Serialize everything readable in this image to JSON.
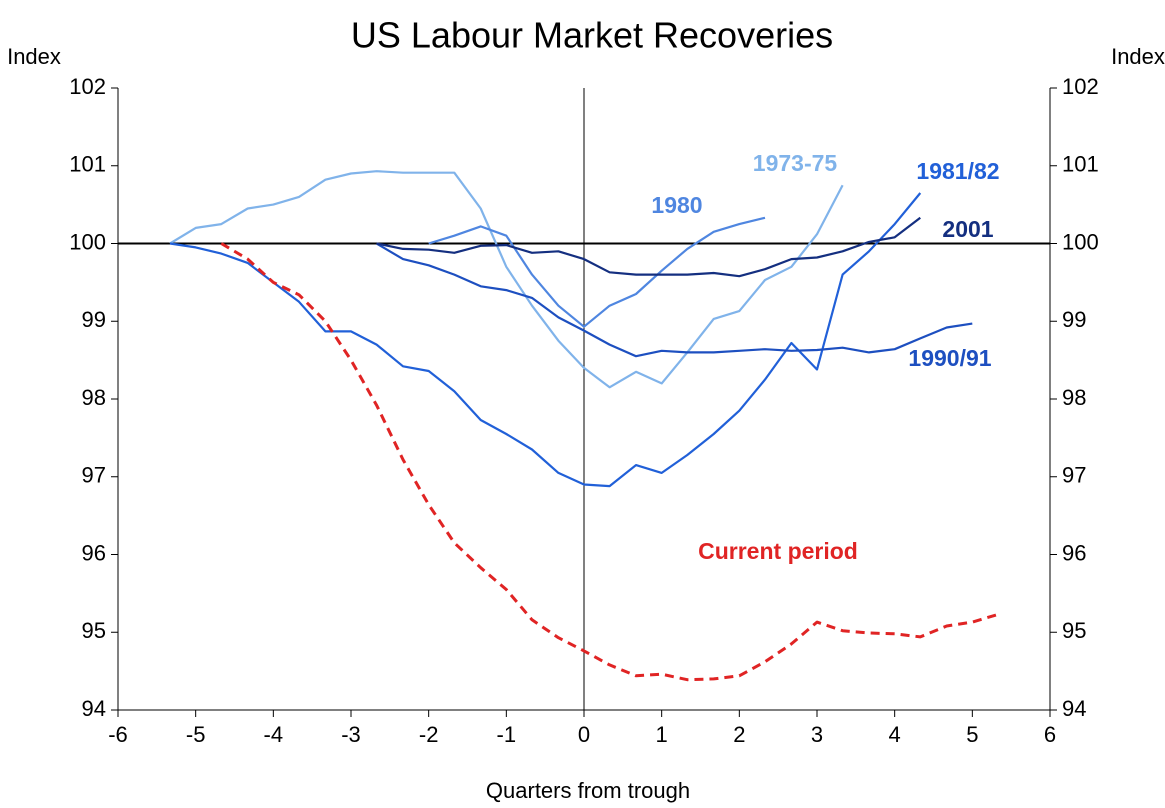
{
  "chart_data": {
    "type": "line",
    "title": "US Labour Market Recoveries",
    "y_label": "Index",
    "y2_label": "Index",
    "x_label": "Quarters from trough",
    "xlim": [
      -6,
      6
    ],
    "xticks": [
      -6,
      -5,
      -4,
      -3,
      -2,
      -1,
      0,
      1,
      2,
      3,
      4,
      5,
      6
    ],
    "ylim": [
      94,
      102
    ],
    "yticks": [
      94,
      95,
      96,
      97,
      98,
      99,
      100,
      101,
      102
    ],
    "y2lim": [
      94,
      102
    ],
    "y2ticks": [
      94,
      95,
      96,
      97,
      98,
      99,
      100,
      101,
      102
    ],
    "grid": false,
    "series": [
      {
        "name": "1973-75",
        "color": "#80b3ea",
        "x": [
          -5.33,
          -5,
          -4.67,
          -4.33,
          -4,
          -3.67,
          -3.33,
          -3,
          -2.67,
          -2.33,
          -2,
          -1.67,
          -1.33,
          -1,
          -0.67,
          -0.33,
          0,
          0.33,
          0.67,
          1,
          1.33,
          1.67,
          2,
          2.33,
          2.67,
          3,
          3.33
        ],
        "values": [
          100,
          100.2,
          100.25,
          100.45,
          100.5,
          100.6,
          100.82,
          100.9,
          100.93,
          100.91,
          100.91,
          100.91,
          100.45,
          99.7,
          99.2,
          98.75,
          98.4,
          98.15,
          98.35,
          98.2,
          98.6,
          99.03,
          99.13,
          99.53,
          99.7,
          100.12,
          100.75
        ]
      },
      {
        "name": "1980",
        "color": "#4f86e0",
        "x": [
          -2,
          -1.67,
          -1.33,
          -1,
          -0.67,
          -0.33,
          0,
          0.33,
          0.67,
          1,
          1.33,
          1.67,
          2,
          2.33
        ],
        "values": [
          100,
          100.1,
          100.22,
          100.1,
          99.6,
          99.2,
          98.93,
          99.2,
          99.35,
          99.65,
          99.93,
          100.15,
          100.25,
          100.33
        ]
      },
      {
        "name": "1981/82",
        "color": "#2160d8",
        "x": [
          -5.33,
          -5,
          -4.67,
          -4.33,
          -4,
          -3.67,
          -3.33,
          -3,
          -2.67,
          -2.33,
          -2,
          -1.67,
          -1.33,
          -1,
          -0.67,
          -0.33,
          0,
          0.33,
          0.67,
          1,
          1.33,
          1.67,
          2,
          2.33,
          2.67,
          3,
          3.33,
          3.67,
          4,
          4.33
        ],
        "values": [
          100,
          99.95,
          99.87,
          99.75,
          99.5,
          99.25,
          98.87,
          98.87,
          98.7,
          98.42,
          98.36,
          98.1,
          97.73,
          97.55,
          97.35,
          97.05,
          96.9,
          96.88,
          97.15,
          97.05,
          97.28,
          97.55,
          97.85,
          98.25,
          98.72,
          98.38,
          99.6,
          99.9,
          100.25,
          100.65
        ]
      },
      {
        "name": "1990/91",
        "color": "#1d4fc0",
        "x": [
          -2.67,
          -2.33,
          -2,
          -1.67,
          -1.33,
          -1,
          -0.67,
          -0.33,
          0,
          0.33,
          0.67,
          1,
          1.33,
          1.67,
          2,
          2.33,
          2.67,
          3,
          3.33,
          3.67,
          4,
          4.33,
          4.67,
          5
        ],
        "values": [
          100,
          99.8,
          99.72,
          99.6,
          99.45,
          99.4,
          99.3,
          99.05,
          98.88,
          98.7,
          98.55,
          98.62,
          98.6,
          98.6,
          98.62,
          98.64,
          98.62,
          98.63,
          98.66,
          98.6,
          98.64,
          98.78,
          98.92,
          98.97
        ]
      },
      {
        "name": "2001",
        "color": "#142f80",
        "x": [
          -2.67,
          -2.33,
          -2,
          -1.67,
          -1.33,
          -1,
          -0.67,
          -0.33,
          0,
          0.33,
          0.67,
          1,
          1.33,
          1.67,
          2,
          2.33,
          2.67,
          3,
          3.33,
          3.67,
          4,
          4.33
        ],
        "values": [
          100,
          99.93,
          99.92,
          99.88,
          99.97,
          99.98,
          99.88,
          99.9,
          99.8,
          99.63,
          99.6,
          99.6,
          99.6,
          99.62,
          99.58,
          99.67,
          99.8,
          99.82,
          99.9,
          100.02,
          100.08,
          100.33
        ]
      },
      {
        "name": "Current period",
        "color": "#e02424",
        "style": "dashed",
        "x": [
          -4.67,
          -4.33,
          -4,
          -3.67,
          -3.33,
          -3,
          -2.67,
          -2.33,
          -2,
          -1.67,
          -1.33,
          -1,
          -0.67,
          -0.33,
          0,
          0.33,
          0.67,
          1,
          1.33,
          1.67,
          2,
          2.33,
          2.67,
          3,
          3.33,
          3.67,
          4,
          4.33,
          4.67,
          5,
          5.33
        ],
        "values": [
          100,
          99.8,
          99.5,
          99.34,
          99.0,
          98.5,
          97.92,
          97.22,
          96.64,
          96.15,
          95.83,
          95.55,
          95.16,
          94.93,
          94.76,
          94.58,
          94.44,
          94.46,
          94.39,
          94.4,
          94.44,
          94.62,
          94.85,
          95.13,
          95.02,
          94.99,
          94.98,
          94.94,
          95.08,
          95.13,
          95.23
        ]
      }
    ]
  }
}
